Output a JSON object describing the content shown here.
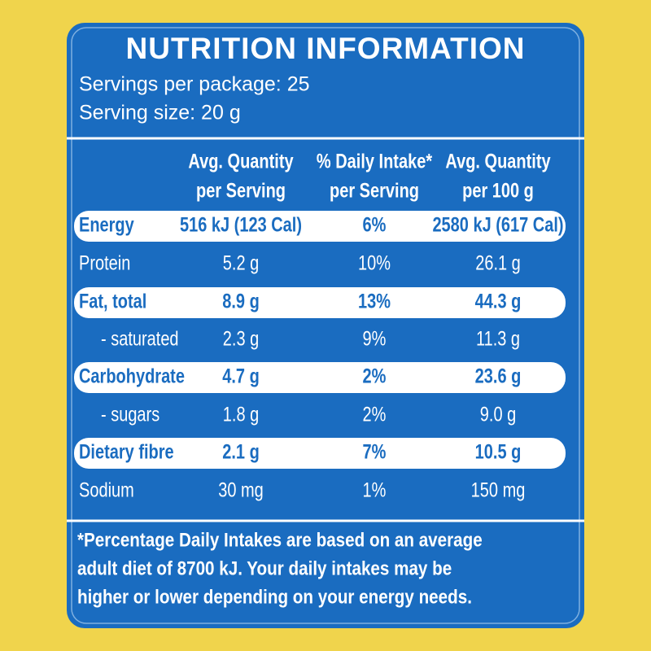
{
  "header": {
    "title": "NUTRITION INFORMATION",
    "servings_per_package": "Servings per package: 25",
    "serving_size": "Serving size: 20 g"
  },
  "table": {
    "columns": [
      [
        "Avg. Quantity",
        "per Serving"
      ],
      [
        "% Daily Intake*",
        "per Serving"
      ],
      [
        "Avg. Quantity",
        "per 100 g"
      ]
    ],
    "rows": [
      {
        "label": "Energy",
        "values": [
          "516 kJ (123 Cal)",
          "6%",
          "2580 kJ (617 Cal)"
        ],
        "highlight": true
      },
      {
        "label": "Protein",
        "values": [
          "5.2 g",
          "10%",
          "26.1 g"
        ],
        "highlight": false
      },
      {
        "label": "Fat, total",
        "values": [
          "8.9 g",
          "13%",
          "44.3 g"
        ],
        "highlight": true
      },
      {
        "label": "- saturated",
        "values": [
          "2.3 g",
          "9%",
          "11.3 g"
        ],
        "highlight": false
      },
      {
        "label": "Carbohydrate",
        "values": [
          "4.7 g",
          "2%",
          "23.6 g"
        ],
        "highlight": true
      },
      {
        "label": "- sugars",
        "values": [
          "1.8 g",
          "2%",
          "9.0 g"
        ],
        "highlight": false
      },
      {
        "label": "Dietary fibre",
        "values": [
          "2.1 g",
          "7%",
          "10.5 g"
        ],
        "highlight": true
      },
      {
        "label": "Sodium",
        "values": [
          "30 mg",
          "1%",
          "150 mg"
        ],
        "highlight": false
      }
    ]
  },
  "footnote": [
    "*Percentage Daily Intakes are based on an average",
    "adult diet of 8700 kJ. Your daily intakes may be",
    "higher or lower depending on your energy needs."
  ]
}
